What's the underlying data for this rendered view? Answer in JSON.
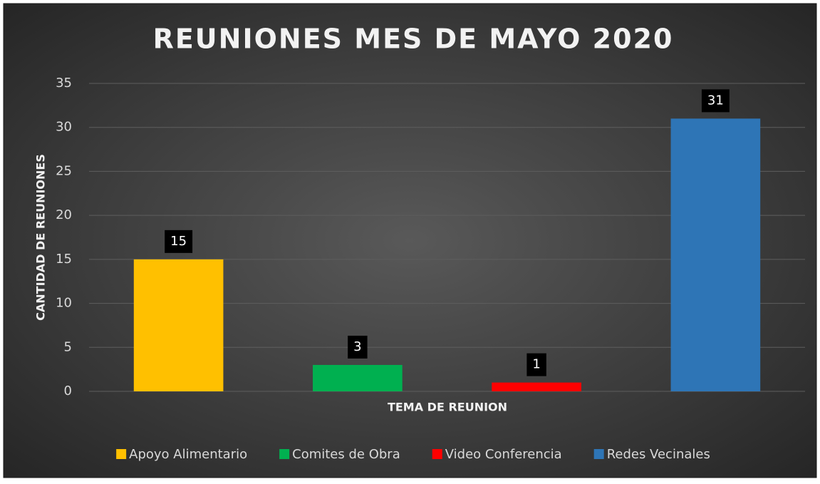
{
  "chart_data": {
    "type": "bar",
    "title": "REUNIONES MES DE MAYO 2020",
    "x_label": "TEMA DE REUNION",
    "y_label": "CANTIDAD DE REUNIONES",
    "categories": [
      null
    ],
    "series": [
      {
        "name": "Apoyo Alimentario",
        "color": "#ffc000",
        "values": [
          15
        ]
      },
      {
        "name": "Comites de Obra",
        "color": "#00b050",
        "values": [
          3
        ]
      },
      {
        "name": "Video Conferencia",
        "color": "#ff0000",
        "values": [
          1
        ]
      },
      {
        "name": "Redes Vecinales",
        "color": "#2e75b6",
        "values": [
          31
        ]
      }
    ],
    "ylim": [
      0,
      35
    ],
    "yticks": [
      0,
      5,
      10,
      15,
      20,
      25,
      30,
      35
    ],
    "grid": true,
    "legend": "bottom"
  }
}
